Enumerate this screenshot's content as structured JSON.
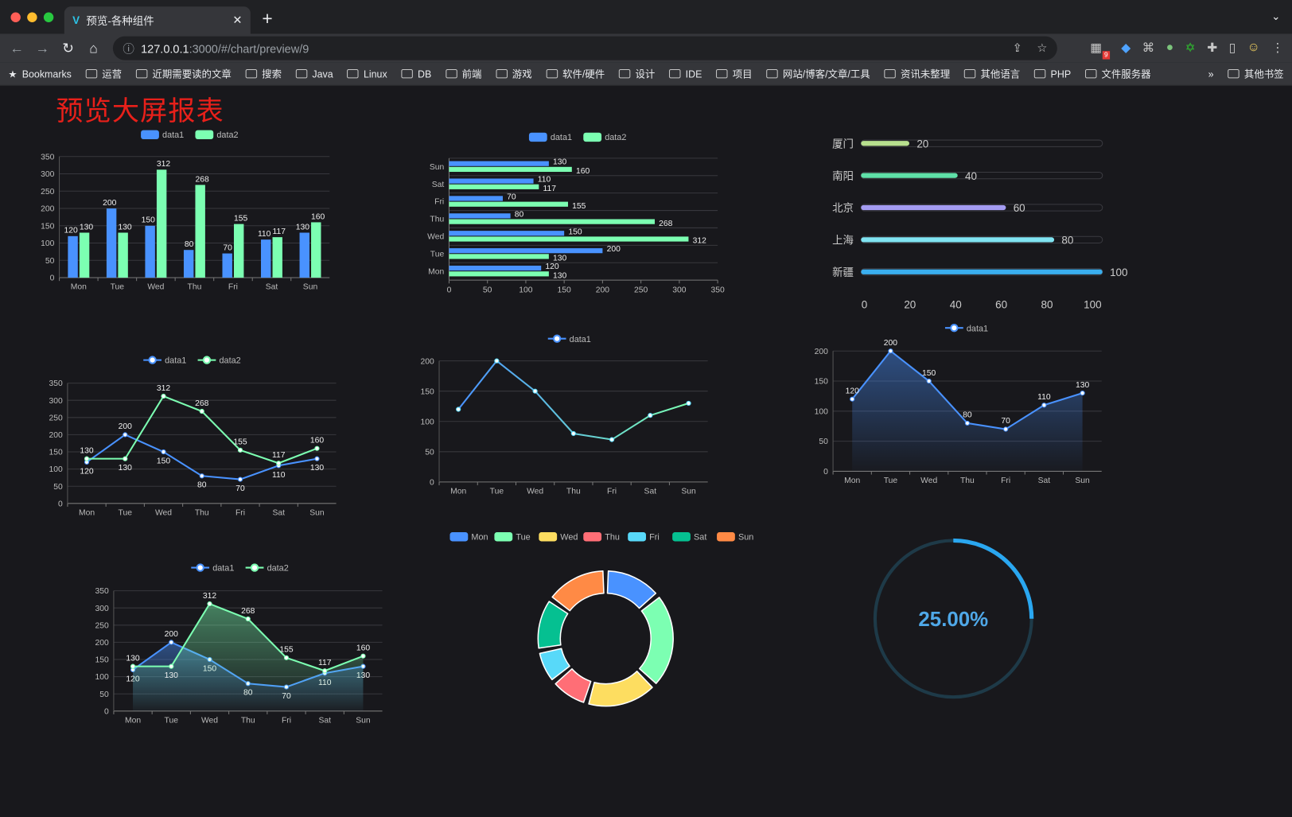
{
  "browser": {
    "tab_title": "预览-各种组件",
    "url_host": "127.0.0.1",
    "url_rest": ":3000/#/chart/preview/9",
    "extension_badge": "9",
    "bookmarks": [
      "Bookmarks",
      "运营",
      "近期需要读的文章",
      "搜索",
      "Java",
      "Linux",
      "DB",
      "前端",
      "游戏",
      "软件/硬件",
      "设计",
      "IDE",
      "项目",
      "网站/博客/文章/工具",
      "资讯未整理",
      "其他语言",
      "PHP",
      "文件服务器"
    ],
    "more": "»",
    "other_bookmarks": "其他书签"
  },
  "page_title": "预览大屏报表",
  "colors": {
    "data1": "#4992ff",
    "data2": "#7cffb2",
    "title": "#e8201a"
  },
  "chart_data": [
    {
      "type": "bar",
      "categories": [
        "Mon",
        "Tue",
        "Wed",
        "Thu",
        "Fri",
        "Sat",
        "Sun"
      ],
      "series": [
        {
          "name": "data1",
          "values": [
            120,
            200,
            150,
            80,
            70,
            110,
            130
          ]
        },
        {
          "name": "data2",
          "values": [
            130,
            130,
            312,
            268,
            155,
            117,
            160
          ]
        }
      ],
      "ylim": [
        0,
        350
      ],
      "yticks": [
        0,
        50,
        100,
        150,
        200,
        250,
        300,
        350
      ],
      "legend": "top",
      "grid": true
    },
    {
      "type": "bar",
      "orientation": "horizontal",
      "categories": [
        "Mon",
        "Tue",
        "Wed",
        "Thu",
        "Fri",
        "Sat",
        "Sun"
      ],
      "series": [
        {
          "name": "data1",
          "values": [
            120,
            200,
            150,
            80,
            70,
            110,
            130
          ]
        },
        {
          "name": "data2",
          "values": [
            130,
            130,
            312,
            268,
            155,
            117,
            160
          ]
        }
      ],
      "xlim": [
        0,
        350
      ],
      "xticks": [
        0,
        50,
        100,
        150,
        200,
        250,
        300,
        350
      ],
      "legend": "top",
      "grid": true
    },
    {
      "type": "bar",
      "orientation": "horizontal",
      "style": "progress",
      "categories": [
        "厦门",
        "南阳",
        "北京",
        "上海",
        "新疆"
      ],
      "values": [
        20,
        40,
        60,
        80,
        100
      ],
      "colors": [
        "#b8e08e",
        "#5fe0a8",
        "#a49cf2",
        "#80e4f2",
        "#3aaeee"
      ],
      "xlim": [
        0,
        100
      ],
      "xticks": [
        0,
        20,
        40,
        60,
        80,
        100
      ]
    },
    {
      "type": "line",
      "categories": [
        "Mon",
        "Tue",
        "Wed",
        "Thu",
        "Fri",
        "Sat",
        "Sun"
      ],
      "series": [
        {
          "name": "data1",
          "values": [
            120,
            200,
            150,
            80,
            70,
            110,
            130
          ]
        },
        {
          "name": "data2",
          "values": [
            130,
            130,
            312,
            268,
            155,
            117,
            160
          ]
        }
      ],
      "ylim": [
        0,
        350
      ],
      "yticks": [
        0,
        50,
        100,
        150,
        200,
        250,
        300,
        350
      ],
      "legend": "top",
      "grid": true
    },
    {
      "type": "line",
      "categories": [
        "Mon",
        "Tue",
        "Wed",
        "Thu",
        "Fri",
        "Sat",
        "Sun"
      ],
      "series": [
        {
          "name": "data1",
          "values": [
            120,
            200,
            150,
            80,
            70,
            110,
            130
          ]
        }
      ],
      "ylim": [
        0,
        200
      ],
      "yticks": [
        0,
        50,
        100,
        150,
        200
      ],
      "legend": "top",
      "grid": true
    },
    {
      "type": "area",
      "categories": [
        "Mon",
        "Tue",
        "Wed",
        "Thu",
        "Fri",
        "Sat",
        "Sun"
      ],
      "series": [
        {
          "name": "data1",
          "values": [
            120,
            200,
            150,
            80,
            70,
            110,
            130
          ]
        }
      ],
      "ylim": [
        0,
        200
      ],
      "yticks": [
        0,
        50,
        100,
        150,
        200
      ],
      "legend": "top",
      "grid": true
    },
    {
      "type": "area",
      "categories": [
        "Mon",
        "Tue",
        "Wed",
        "Thu",
        "Fri",
        "Sat",
        "Sun"
      ],
      "series": [
        {
          "name": "data1",
          "values": [
            120,
            200,
            150,
            80,
            70,
            110,
            130
          ]
        },
        {
          "name": "data2",
          "values": [
            130,
            130,
            312,
            268,
            155,
            117,
            160
          ]
        }
      ],
      "ylim": [
        0,
        350
      ],
      "yticks": [
        0,
        50,
        100,
        150,
        200,
        250,
        300,
        350
      ],
      "legend": "top",
      "grid": true
    },
    {
      "type": "pie",
      "style": "donut",
      "categories": [
        "Mon",
        "Tue",
        "Wed",
        "Thu",
        "Fri",
        "Sat",
        "Sun"
      ],
      "values": [
        120,
        200,
        150,
        80,
        70,
        110,
        130
      ],
      "colors": [
        "#4992ff",
        "#7cffb2",
        "#fddd60",
        "#ff6e76",
        "#58d9f9",
        "#05c091",
        "#ff8a45"
      ],
      "legend": "top"
    },
    {
      "type": "gauge",
      "value": 25,
      "label": "25.00%",
      "color": "#2aa7f0"
    }
  ]
}
